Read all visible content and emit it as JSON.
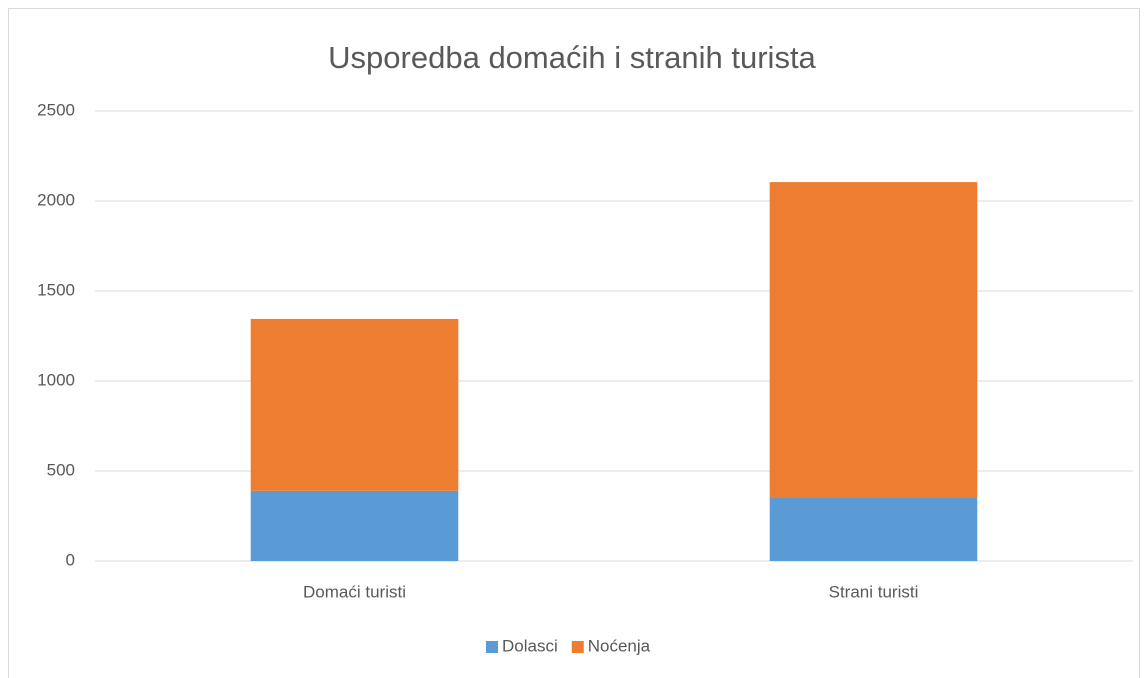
{
  "chart_data": {
    "type": "bar",
    "stacked": true,
    "title": "Usporedba domaćih i stranih turista",
    "categories": [
      "Domaći turisti",
      "Strani turisti"
    ],
    "series": [
      {
        "name": "Dolasci",
        "color": "#5b9bd5",
        "values": [
          390,
          355
        ]
      },
      {
        "name": "Noćenja",
        "color": "#ed7d31",
        "values": [
          955,
          1750
        ]
      }
    ],
    "ylim": [
      0,
      2500
    ],
    "yticks": [
      0,
      500,
      1000,
      1500,
      2000,
      2500
    ],
    "grid": true,
    "legend": "bottom"
  }
}
